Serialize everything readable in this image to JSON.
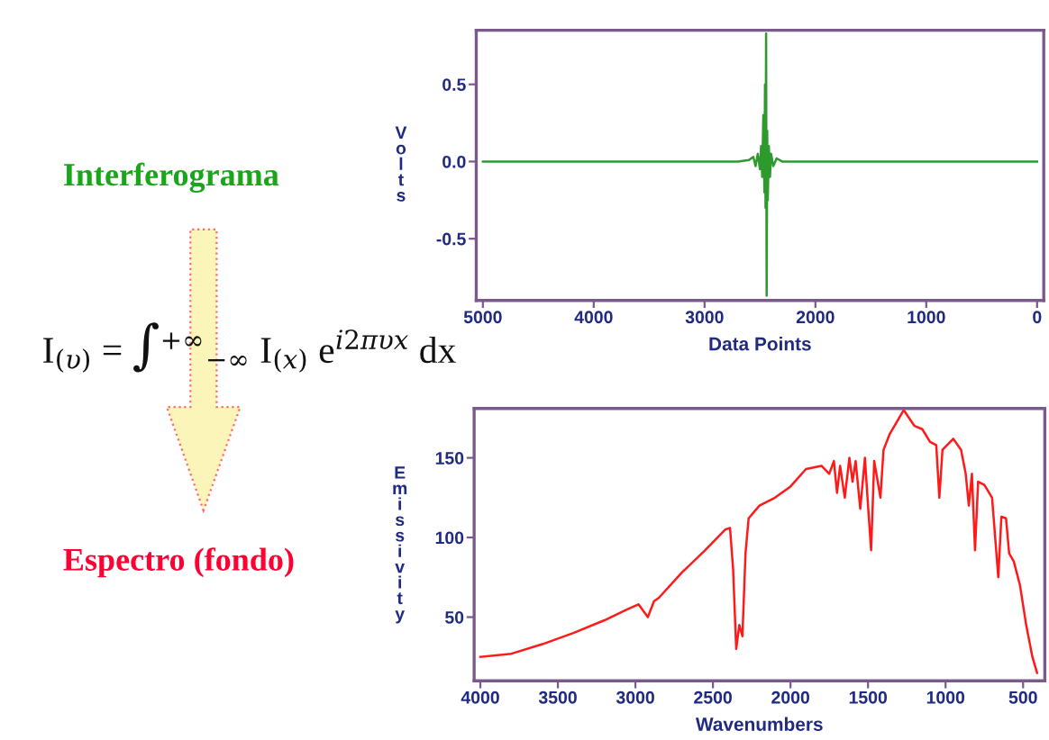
{
  "chart_data": [
    {
      "type": "line",
      "xlabel": "Data Points",
      "ylabel": "Volts",
      "xlim": [
        5060,
        -60
      ],
      "ylim": [
        -0.9,
        0.85
      ],
      "xticks": [
        5000,
        4000,
        3000,
        2000,
        1000,
        0
      ],
      "yticks": [
        {
          "value": 0.5,
          "label": "0.5"
        },
        {
          "value": 0.0,
          "label": "0.0"
        },
        {
          "value": -0.5,
          "label": "-0.5"
        }
      ],
      "grid": false,
      "legend": false,
      "marker": "none",
      "line_style": "solid",
      "annotations": [
        "Interferograma",
        "I$_{(υ)}$ = ∫$^{+∞}$$_{−∞}$ I$_{(x)}$ e$^{i2πυx}$ dx"
      ],
      "series": [
        {
          "color": "#2e9a2e",
          "x": [
            5000,
            4500,
            4000,
            3500,
            3000,
            2700,
            2600,
            2560,
            2540,
            2520,
            2500,
            2490,
            2480,
            2470,
            2460,
            2455,
            2450,
            2445,
            2440,
            2435,
            2430,
            2420,
            2410,
            2400,
            2380,
            2350,
            2300,
            2200,
            2000,
            1500,
            1000,
            500,
            0
          ],
          "values": [
            0,
            0,
            0,
            0,
            0,
            0,
            0.01,
            0.03,
            -0.03,
            0.05,
            -0.05,
            0.1,
            -0.1,
            0.3,
            -0.2,
            0.5,
            -0.3,
            0.83,
            -0.87,
            0.2,
            -0.25,
            0.1,
            -0.1,
            0.05,
            -0.03,
            0.02,
            0,
            0,
            0,
            0,
            0,
            0,
            0
          ]
        }
      ]
    },
    {
      "type": "line",
      "xlabel": "Wavenumbers",
      "ylabel": "Emissivity",
      "xlim": [
        4040,
        360
      ],
      "ylim": [
        10,
        181
      ],
      "xticks": [
        4000,
        3500,
        3000,
        2500,
        2000,
        1500,
        1000,
        500
      ],
      "yticks": [
        50,
        100,
        150
      ],
      "grid": false,
      "legend": false,
      "marker": "none",
      "line_style": "solid",
      "annotations": [
        "Espectro (fondo)"
      ],
      "series": [
        {
          "color": "#ff1a1a",
          "x": [
            4000,
            3800,
            3600,
            3400,
            3200,
            3050,
            2980,
            2920,
            2880,
            2850,
            2700,
            2550,
            2420,
            2390,
            2370,
            2350,
            2330,
            2310,
            2290,
            2270,
            2200,
            2100,
            2000,
            1900,
            1800,
            1750,
            1720,
            1700,
            1680,
            1650,
            1620,
            1600,
            1580,
            1550,
            1520,
            1500,
            1480,
            1460,
            1420,
            1400,
            1360,
            1300,
            1270,
            1200,
            1150,
            1100,
            1060,
            1040,
            1020,
            950,
            900,
            870,
            850,
            830,
            810,
            790,
            750,
            700,
            680,
            660,
            640,
            610,
            590,
            560,
            520,
            480,
            440,
            410
          ],
          "values": [
            25,
            27,
            33,
            40,
            48,
            55,
            58,
            50,
            60,
            62,
            78,
            92,
            105,
            106,
            80,
            30,
            45,
            38,
            90,
            112,
            120,
            125,
            132,
            143,
            145,
            140,
            148,
            128,
            145,
            125,
            150,
            135,
            148,
            118,
            150,
            120,
            92,
            148,
            125,
            155,
            165,
            175,
            180,
            170,
            168,
            160,
            158,
            125,
            155,
            162,
            155,
            140,
            120,
            140,
            92,
            135,
            133,
            125,
            100,
            75,
            113,
            112,
            90,
            85,
            70,
            45,
            25,
            15
          ]
        }
      ]
    }
  ]
}
